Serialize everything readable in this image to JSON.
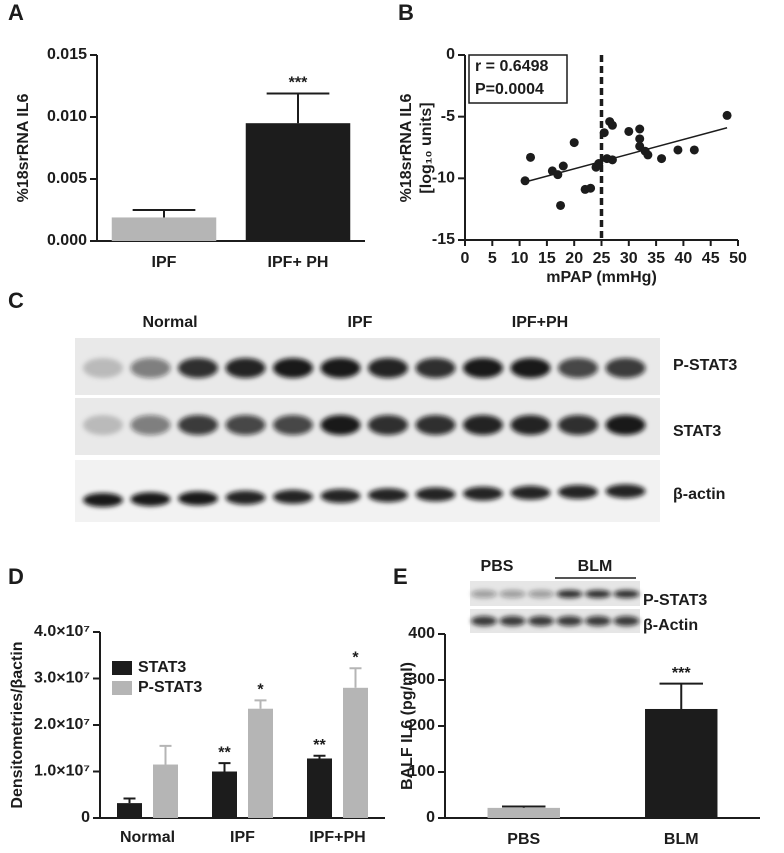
{
  "chart_data": [
    {
      "type": "bar",
      "panel": "A",
      "y_label": "%18srRNA IL6",
      "categories": [
        "IPF",
        "IPF+ PH"
      ],
      "values": [
        0.0019,
        0.0095
      ],
      "errors": [
        0.0006,
        0.0024
      ],
      "colors": [
        "#b5b5b5",
        "#1c1c1c"
      ],
      "significance": [
        null,
        "***"
      ],
      "ylim": [
        0,
        0.015
      ],
      "yticks": [
        {
          "value": 0,
          "label": "0.000"
        },
        {
          "value": 0.005,
          "label": "0.005"
        },
        {
          "value": 0.01,
          "label": "0.010"
        },
        {
          "value": 0.015,
          "label": "0.015"
        }
      ]
    },
    {
      "type": "scatter",
      "panel": "B",
      "y_label": [
        "%18srRNA IL6",
        "[log₁₀ units]"
      ],
      "x_label": "mPAP (mmHg)",
      "x": [
        11,
        12,
        16,
        17,
        17.5,
        18,
        20,
        22,
        23,
        24,
        24.5,
        25.5,
        26,
        26.5,
        27,
        27,
        30,
        32,
        32,
        32,
        33,
        33.5,
        36,
        39,
        42,
        48
      ],
      "y": [
        -10.2,
        -8.3,
        -9.4,
        -9.7,
        -12.2,
        -9,
        -7.1,
        -10.9,
        -10.8,
        -9.1,
        -8.8,
        -6.3,
        -8.4,
        -5.4,
        -5.7,
        -8.5,
        -6.2,
        -7.4,
        -6,
        -6.8,
        -7.8,
        -8.1,
        -8.4,
        -7.7,
        -7.7,
        -4.9
      ],
      "color": "#1c1c1c",
      "fit": {
        "x": [
          11,
          48
        ],
        "y": [
          -10.3,
          -5.9
        ]
      },
      "vline": 25,
      "annotations": [
        "r = 0.6498",
        "P=0.0004"
      ],
      "xlim": [
        0,
        50
      ],
      "xticks": [
        0,
        5,
        10,
        15,
        20,
        25,
        30,
        35,
        40,
        45,
        50
      ],
      "ylim": [
        -15,
        0
      ],
      "yticks": [
        -15,
        -10,
        -5,
        0
      ]
    },
    {
      "type": "grouped_bar",
      "panel": "D",
      "y_label": "Densitometries/βactin",
      "categories": [
        "Normal",
        "IPF",
        "IPF+PH"
      ],
      "series": [
        {
          "name": "STAT3",
          "color": "#1c1c1c",
          "values": [
            3200000,
            10000000,
            12800000
          ],
          "errors": [
            1000000,
            1800000,
            600000
          ],
          "significance": [
            null,
            "**",
            "**"
          ]
        },
        {
          "name": "P-STAT3",
          "color": "#b5b5b5",
          "values": [
            11500000,
            23500000,
            28000000
          ],
          "errors": [
            4000000,
            1800000,
            4200000
          ],
          "significance": [
            null,
            "*",
            "*"
          ]
        }
      ],
      "legend": "upper-left",
      "ylim": [
        0,
        40000000
      ],
      "yticks": [
        0,
        {
          "value": 10000000,
          "label": "1.0×10⁷"
        },
        {
          "value": 20000000,
          "label": "2.0×10⁷"
        },
        {
          "value": 30000000,
          "label": "3.0×10⁷"
        },
        {
          "value": 40000000,
          "label": "4.0×10⁷"
        }
      ]
    },
    {
      "type": "bar",
      "panel": "E",
      "y_label": "BALF IL6 (pg/ml)",
      "categories": [
        "PBS",
        "BLM"
      ],
      "values": [
        22,
        237
      ],
      "errors": [
        3,
        55
      ],
      "colors": [
        "#b5b5b5",
        "#1c1c1c"
      ],
      "significance": [
        null,
        "***"
      ],
      "ylim": [
        0,
        400
      ],
      "yticks": [
        0,
        100,
        200,
        300,
        400
      ],
      "inset": {
        "groups": [
          "PBS",
          "BLM"
        ],
        "rows": [
          "P-STAT3",
          "β-Actin"
        ]
      }
    }
  ],
  "blot": {
    "panel": "C",
    "groups": [
      "Normal",
      "IPF",
      "IPF+PH"
    ],
    "rows": [
      "P-STAT3",
      "STAT3",
      "β-actin"
    ]
  }
}
